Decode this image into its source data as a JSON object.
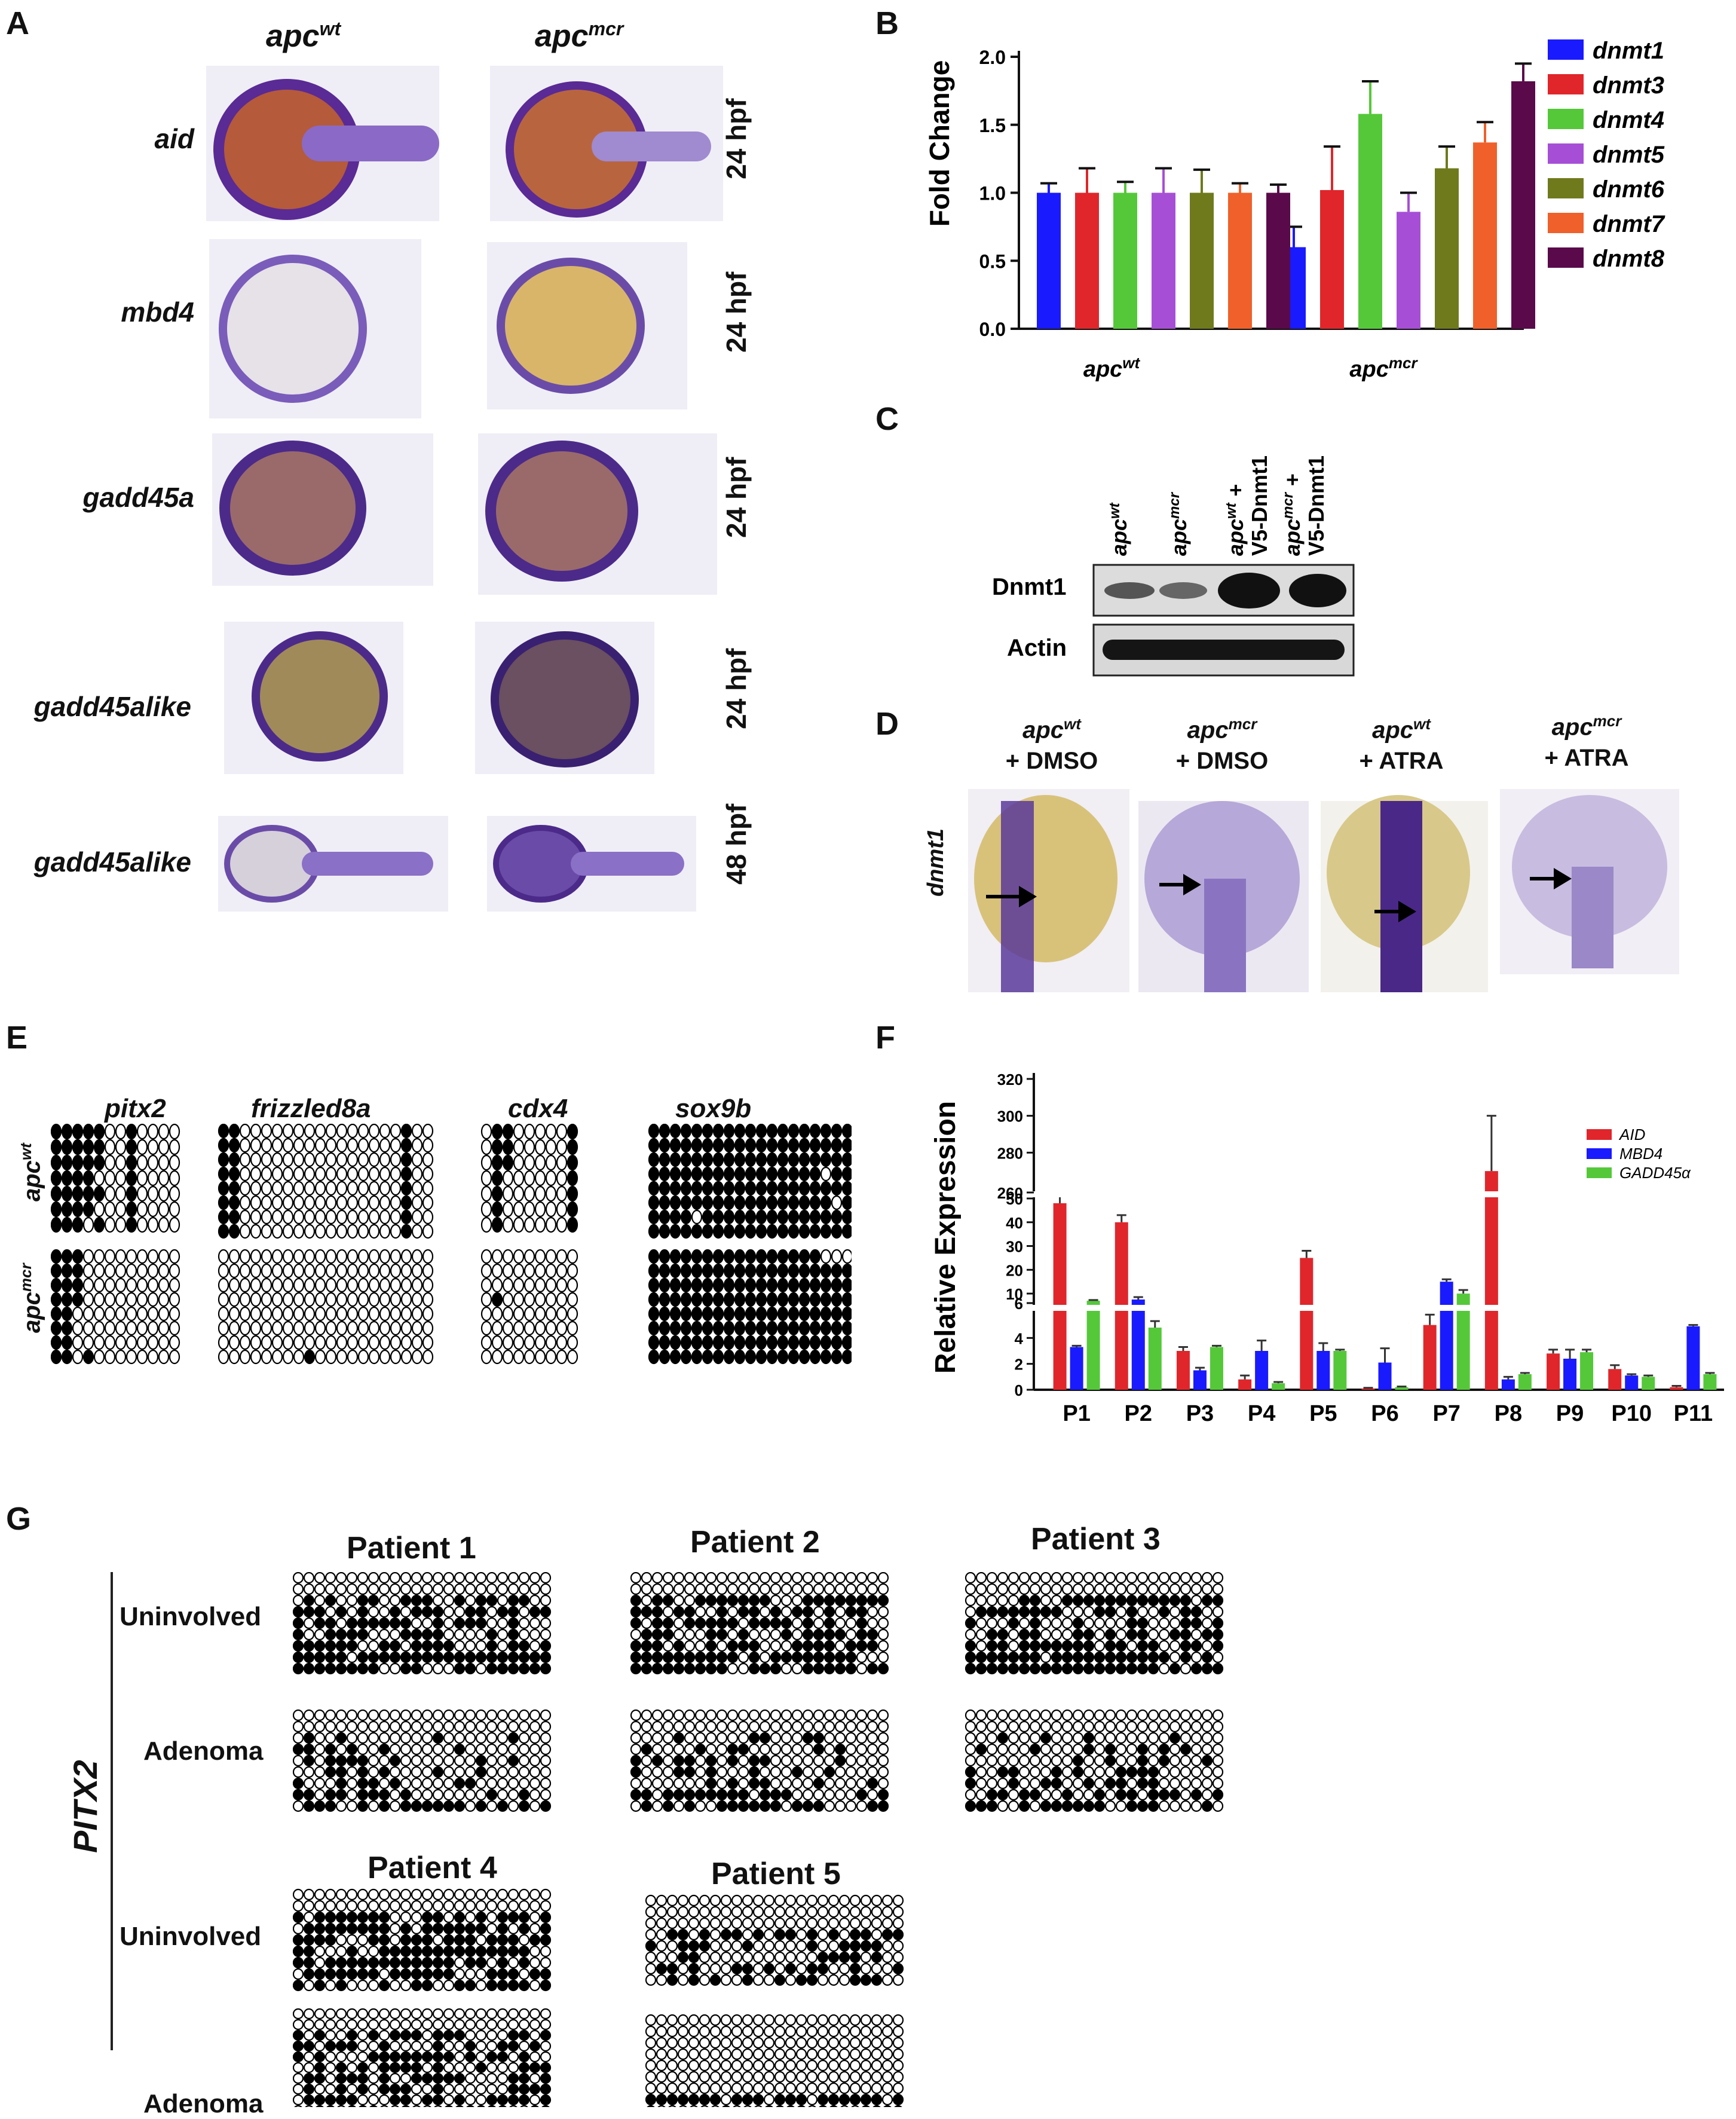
{
  "panel_labels": {
    "A": "A",
    "B": "B",
    "C": "C",
    "D": "D",
    "E": "E",
    "F": "F",
    "G": "G"
  },
  "panelA": {
    "col_wt": "apc",
    "col_wt_sup": "wt",
    "col_mcr": "apc",
    "col_mcr_sup": "mcr",
    "rows": [
      {
        "gene": "aid",
        "time": "24 hpf"
      },
      {
        "gene": "mbd4",
        "time": "24 hpf"
      },
      {
        "gene": "gadd45a",
        "time": "24 hpf"
      },
      {
        "gene": "gadd45alike",
        "time": "24 hpf"
      },
      {
        "gene": "gadd45alike",
        "time": "48 hpf"
      }
    ]
  },
  "panelB": {
    "ylabel": "Fold Change",
    "yticks": [
      "0.0",
      "0.5",
      "1.0",
      "1.5",
      "2.0"
    ],
    "group_wt": "apc",
    "group_wt_sup": "wt",
    "group_mcr": "apc",
    "group_mcr_sup": "mcr",
    "legend": [
      "dnmt1",
      "dnmt3",
      "dnmt4",
      "dnmt5",
      "dnmt6",
      "dnmt7",
      "dnmt8"
    ],
    "colors": [
      "#1a1aff",
      "#e0262b",
      "#55c83a",
      "#a64fd6",
      "#6f7a1c",
      "#f0602a",
      "#5a0a4a"
    ]
  },
  "panelC": {
    "lanes": [
      {
        "main": "apc",
        "sup": "wt",
        "extra": ""
      },
      {
        "main": "apc",
        "sup": "mcr",
        "extra": ""
      },
      {
        "main": "apc",
        "sup": "wt",
        "extra": " +",
        "line2": "V5-Dnmt1"
      },
      {
        "main": "apc",
        "sup": "mcr",
        "extra": " +",
        "line2": "V5-Dnmt1"
      }
    ],
    "row1": "Dnmt1",
    "row2": "Actin"
  },
  "panelD": {
    "ylabel": "dnmt1",
    "cols": [
      {
        "main": "apc",
        "sup": "wt",
        "treat": "+ DMSO"
      },
      {
        "main": "apc",
        "sup": "mcr",
        "treat": "+ DMSO"
      },
      {
        "main": "apc",
        "sup": "wt",
        "treat": "+ ATRA"
      },
      {
        "main": "apc",
        "sup": "mcr",
        "treat": "+ ATRA"
      }
    ]
  },
  "panelE": {
    "genes": [
      "pitx2",
      "frizzled8a",
      "cdx4",
      "sox9b"
    ],
    "row_wt": "apc",
    "row_wt_sup": "wt",
    "row_mcr": "apc",
    "row_mcr_sup": "mcr"
  },
  "panelF": {
    "ylabel": "Relative Expression",
    "yticks_top": [
      "260",
      "280",
      "300",
      "320"
    ],
    "yticks_mid": [
      "6",
      "10",
      "20",
      "30",
      "40",
      "50"
    ],
    "yticks_low": [
      "0",
      "2",
      "4"
    ],
    "legend": [
      "AID",
      "MBD4",
      "GADD45α"
    ],
    "colors": [
      "#e0262b",
      "#1a1aff",
      "#55c83a"
    ]
  },
  "panelG": {
    "gene": "PITX2",
    "row_uninvolved": "Uninvolved",
    "row_adenoma": "Adenoma",
    "patients": [
      "Patient 1",
      "Patient 2",
      "Patient 3",
      "Patient 4",
      "Patient 5"
    ]
  },
  "chart_data": [
    {
      "type": "bar",
      "panel": "B",
      "ylabel": "Fold Change",
      "ylim": [
        0,
        2.0
      ],
      "categories": [
        "apcwt",
        "apcmcr"
      ],
      "series": [
        {
          "name": "dnmt1",
          "values": [
            1.0,
            0.6
          ],
          "errors": [
            0.07,
            0.15
          ]
        },
        {
          "name": "dnmt3",
          "values": [
            1.0,
            1.02
          ],
          "errors": [
            0.18,
            0.32
          ]
        },
        {
          "name": "dnmt4",
          "values": [
            1.0,
            1.58
          ],
          "errors": [
            0.08,
            0.24
          ]
        },
        {
          "name": "dnmt5",
          "values": [
            1.0,
            0.86
          ],
          "errors": [
            0.18,
            0.14
          ]
        },
        {
          "name": "dnmt6",
          "values": [
            1.0,
            1.18
          ],
          "errors": [
            0.17,
            0.16
          ]
        },
        {
          "name": "dnmt7",
          "values": [
            1.0,
            1.37
          ],
          "errors": [
            0.07,
            0.15
          ]
        },
        {
          "name": "dnmt8",
          "values": [
            1.0,
            1.82
          ],
          "errors": [
            0.06,
            0.13
          ]
        }
      ]
    },
    {
      "type": "bar",
      "panel": "F",
      "ylabel": "Relative Expression",
      "categories": [
        "P1",
        "P2",
        "P3",
        "P4",
        "P5",
        "P6",
        "P7",
        "P8",
        "P9",
        "P10",
        "P11"
      ],
      "series": [
        {
          "name": "AID",
          "values": [
            48,
            40,
            3.0,
            0.8,
            25,
            0.1,
            5.0,
            270,
            2.8,
            1.6,
            0.2
          ],
          "errors": [
            3,
            3,
            0.3,
            0.3,
            3,
            0.05,
            0.8,
            30,
            0.3,
            0.3,
            0.1
          ]
        },
        {
          "name": "MBD4",
          "values": [
            3.3,
            7.5,
            1.5,
            3.0,
            3.0,
            2.1,
            15,
            0.8,
            2.4,
            1.1,
            4.9
          ],
          "errors": [
            0.1,
            1.0,
            0.2,
            0.8,
            0.6,
            1.1,
            1.0,
            0.2,
            0.7,
            0.1,
            0.1
          ]
        },
        {
          "name": "GADD45α",
          "values": [
            7.0,
            4.8,
            3.3,
            0.5,
            3.0,
            0.2,
            10,
            1.2,
            2.9,
            1.0,
            1.2
          ],
          "errors": [
            0.3,
            0.5,
            0.1,
            0.1,
            0.1,
            0.05,
            1.5,
            0.1,
            0.2,
            0.1,
            0.1
          ]
        }
      ]
    }
  ]
}
